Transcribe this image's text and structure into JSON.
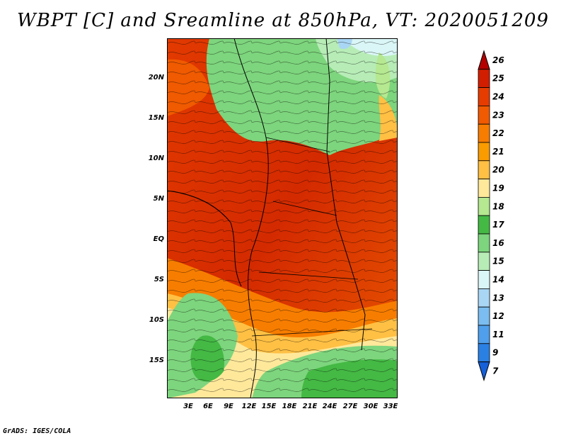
{
  "title": "WBPT [C] and Sreamline at 850hPa, VT: 2020051209",
  "footer": "GrADS: IGES/COLA",
  "map": {
    "lat_labels": [
      "20N",
      "15N",
      "10N",
      "5N",
      "EQ",
      "5S",
      "10S",
      "15S"
    ],
    "lon_labels": [
      "3E",
      "6E",
      "9E",
      "12E",
      "15E",
      "18E",
      "21E",
      "24E",
      "27E",
      "30E",
      "33E"
    ]
  },
  "colorbar": {
    "labels": [
      "26",
      "25",
      "24",
      "23",
      "22",
      "21",
      "20",
      "19",
      "18",
      "17",
      "16",
      "15",
      "14",
      "13",
      "12",
      "11",
      "9",
      "7"
    ],
    "colors": [
      "#b40000",
      "#d21e00",
      "#e63c00",
      "#f05a00",
      "#f77d00",
      "#fa9b00",
      "#ffc044",
      "#ffe89a",
      "#b5e890",
      "#44b944",
      "#7dd57d",
      "#b7ecb7",
      "#daf6f6",
      "#a9d6f4",
      "#7bbdf0",
      "#4f9fec",
      "#2b80e3",
      "#1660d8"
    ]
  }
}
